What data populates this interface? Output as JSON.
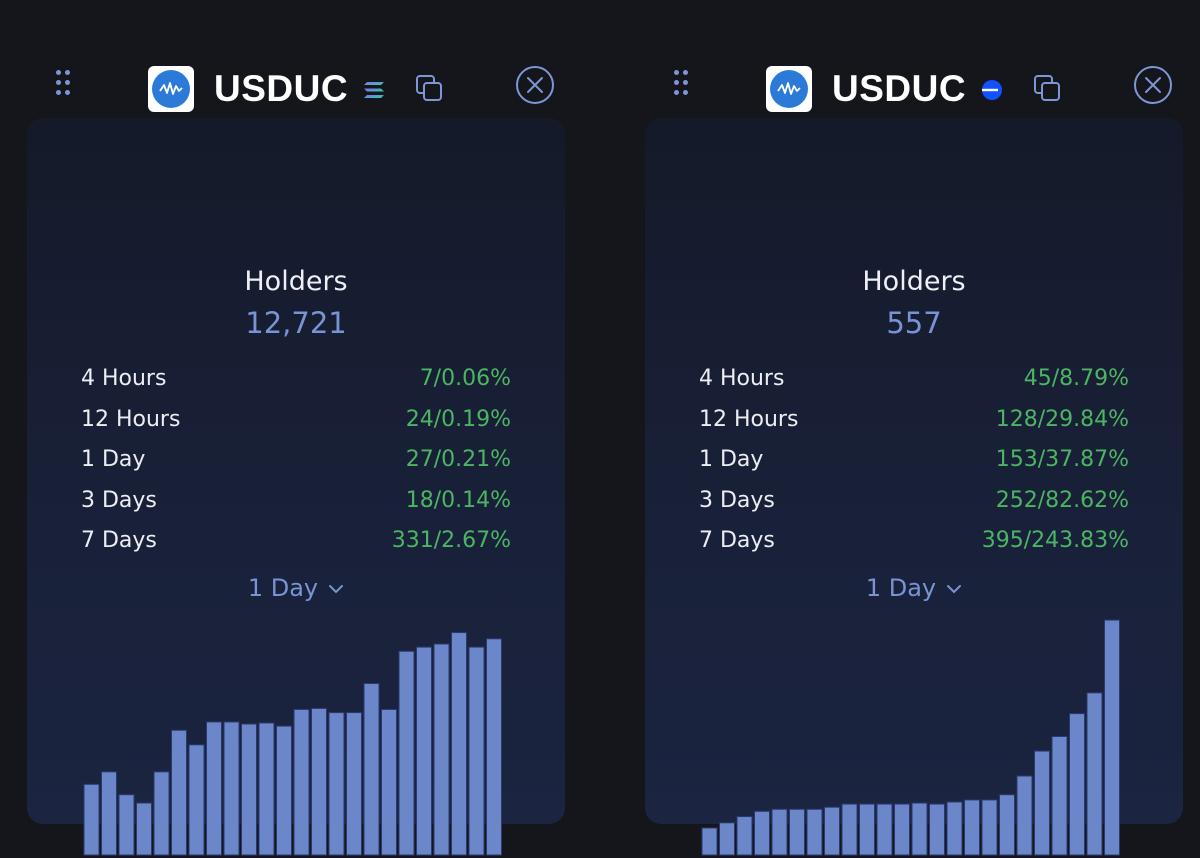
{
  "cards": [
    {
      "token_name": "USDUC",
      "chain_icon": "solana-icon",
      "holders_label": "Holders",
      "holders_value": "12,721",
      "stats": [
        {
          "label": "4 Hours",
          "value": "7/0.06%"
        },
        {
          "label": "12 Hours",
          "value": "24/0.19%"
        },
        {
          "label": "1 Day",
          "value": "27/0.21%"
        },
        {
          "label": "3 Days",
          "value": "18/0.14%"
        },
        {
          "label": "7 Days",
          "value": "331/2.67%"
        }
      ],
      "period_selector": "1 Day",
      "chart_data": {
        "type": "bar",
        "values": [
          68,
          80,
          58,
          50,
          80,
          120,
          106,
          128,
          128,
          126,
          127,
          124,
          140,
          141,
          137,
          137,
          165,
          140,
          196,
          200,
          203,
          214,
          200,
          208
        ],
        "ylim": [
          0,
          228
        ],
        "color": "#6b86c9"
      }
    },
    {
      "token_name": "USDUC",
      "chain_icon": "base-icon",
      "holders_label": "Holders",
      "holders_value": "557",
      "stats": [
        {
          "label": "4 Hours",
          "value": "45/8.79%"
        },
        {
          "label": "12 Hours",
          "value": "128/29.84%"
        },
        {
          "label": "1 Day",
          "value": "153/37.87%"
        },
        {
          "label": "3 Days",
          "value": "252/82.62%"
        },
        {
          "label": "7 Days",
          "value": "395/243.83%"
        }
      ],
      "period_selector": "1 Day",
      "chart_data": {
        "type": "bar",
        "values": [
          26,
          31,
          37,
          42,
          44,
          44,
          44,
          46,
          49,
          49,
          49,
          49,
          50,
          49,
          51,
          53,
          53,
          58,
          76,
          100,
          114,
          136,
          156,
          226
        ],
        "ylim": [
          0,
          228
        ],
        "color": "#6b86c9"
      }
    }
  ],
  "colors": {
    "accent_blue": "#7a93d4",
    "positive_green": "#4bb563",
    "bar_fill": "#6b86c9"
  }
}
